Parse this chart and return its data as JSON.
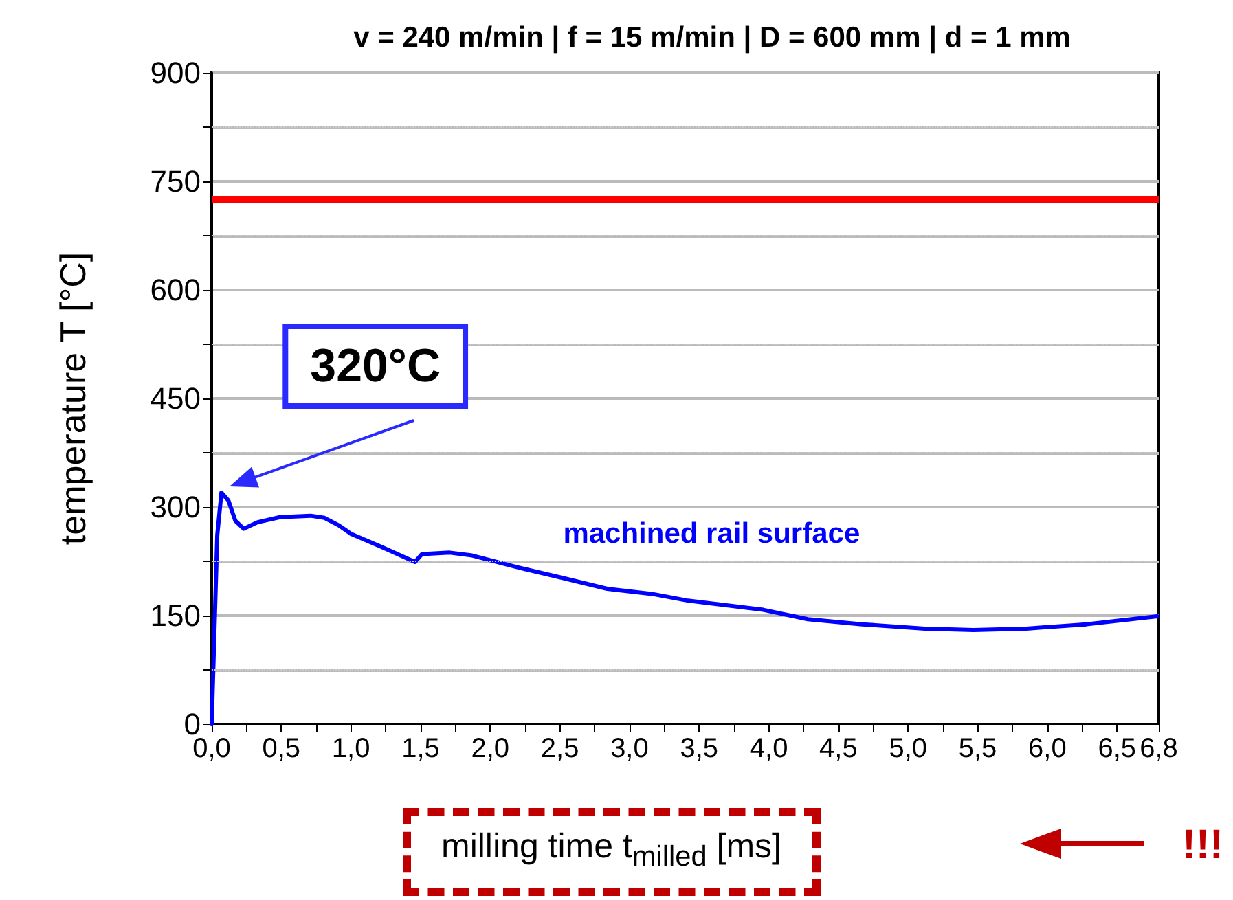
{
  "chart_data": {
    "type": "line",
    "title": "v = 240 m/min | f = 15 m/min | D = 600 mm | d = 1 mm",
    "xlabel": "milling time t$_{milled}$ [ms]",
    "ylabel": "temperature T [°C]",
    "x": [
      0,
      0.04,
      0.07,
      0.12,
      0.17,
      0.23,
      0.33,
      0.49,
      0.71,
      0.81,
      0.91,
      1.0,
      1.23,
      1.46,
      1.51,
      1.71,
      1.87,
      2.19,
      2.52,
      2.84,
      3.16,
      3.41,
      3.96,
      4.28,
      4.67,
      5.12,
      5.47,
      5.85,
      6.28,
      6.79
    ],
    "series": [
      {
        "name": "machined rail surface",
        "color": "#0000ff",
        "values": [
          0,
          261,
          320,
          309,
          281,
          270,
          279,
          286,
          288,
          285,
          275,
          263,
          244,
          224,
          235,
          237,
          233,
          217,
          202,
          187,
          180,
          171,
          158,
          145,
          138,
          132,
          130,
          132,
          138,
          149
        ]
      }
    ],
    "xlim": [
      0,
      6.8
    ],
    "xticks": [
      {
        "value": 0,
        "label": "0,0"
      },
      {
        "value": 0.25,
        "label": null
      },
      {
        "value": 0.5,
        "label": "0,5"
      },
      {
        "value": 0.75,
        "label": null
      },
      {
        "value": 1,
        "label": "1,0"
      },
      {
        "value": 1.25,
        "label": null
      },
      {
        "value": 1.5,
        "label": "1,5"
      },
      {
        "value": 1.75,
        "label": null
      },
      {
        "value": 2,
        "label": "2,0"
      },
      {
        "value": 2.25,
        "label": null
      },
      {
        "value": 2.5,
        "label": "2,5"
      },
      {
        "value": 2.75,
        "label": null
      },
      {
        "value": 3,
        "label": "3,0"
      },
      {
        "value": 3.25,
        "label": null
      },
      {
        "value": 3.5,
        "label": "3,5"
      },
      {
        "value": 3.75,
        "label": null
      },
      {
        "value": 4,
        "label": "4,0"
      },
      {
        "value": 4.25,
        "label": null
      },
      {
        "value": 4.5,
        "label": "4,5"
      },
      {
        "value": 4.75,
        "label": null
      },
      {
        "value": 5,
        "label": "5,0"
      },
      {
        "value": 5.25,
        "label": null
      },
      {
        "value": 5.5,
        "label": "5,5"
      },
      {
        "value": 5.75,
        "label": null
      },
      {
        "value": 6,
        "label": "6,0"
      },
      {
        "value": 6.25,
        "label": null
      },
      {
        "value": 6.5,
        "label": "6,5"
      },
      {
        "value": 6.8,
        "label": "6,8"
      }
    ],
    "ylim": [
      0,
      900
    ],
    "yticks": [
      0,
      {
        "value": 75,
        "label": null
      },
      150,
      {
        "value": 225,
        "label": null
      },
      300,
      {
        "value": 375,
        "label": null
      },
      450,
      {
        "value": 525,
        "label": null
      },
      600,
      {
        "value": 675,
        "label": null
      },
      750,
      {
        "value": 825,
        "label": null
      },
      900
    ],
    "grid": "y",
    "legend": false,
    "marker": "none",
    "line_style": "solid",
    "ref_lines": [
      {
        "axis": "y",
        "value": 725,
        "color": "#ff0000",
        "line_style": "solid"
      }
    ],
    "annotations": [
      {
        "text": "320°C",
        "x": 0.07,
        "y": 320
      },
      "!!!"
    ]
  }
}
